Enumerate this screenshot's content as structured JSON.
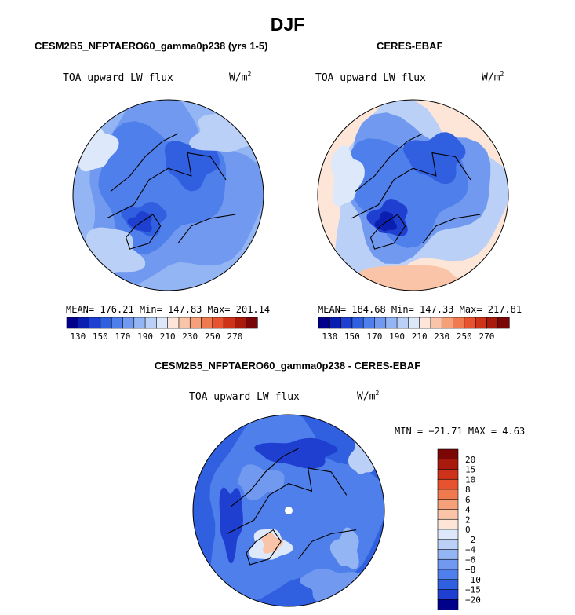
{
  "figure": {
    "season_title": "DJF",
    "panel_left_title": "CESM2B5_NFPTAERO60_gamma0p238 (yrs 1-5)",
    "panel_right_title": "CERES-EBAF",
    "panel_diff_title": "CESM2B5_NFPTAERO60_gamma0p238 - CERES-EBAF"
  },
  "panels": {
    "left": {
      "variable": "TOA upward LW flux",
      "units_base": "W/m",
      "units_exp": "2",
      "stats": "MEAN= 176.21  Min= 147.83  Max= 201.14"
    },
    "right": {
      "variable": "TOA upward LW flux",
      "units_base": "W/m",
      "units_exp": "2",
      "stats": "MEAN= 184.68  Min= 147.33  Max= 217.81"
    },
    "diff": {
      "variable": "TOA upward LW flux",
      "units_base": "W/m",
      "units_exp": "2",
      "stats": "MIN = −21.71 MAX =   4.63"
    }
  },
  "chart_data": [
    {
      "type": "heatmap",
      "projection": "north-polar-stereographic",
      "title": "CESM2B5_NFPTAERO60_gamma0p238 (yrs 1-5)",
      "variable": "TOA upward LW flux",
      "units": "W/m^2",
      "mean": 176.21,
      "min": 147.83,
      "max": 201.14,
      "colorbar": {
        "orientation": "horizontal",
        "tick_labels": [
          "130",
          "150",
          "170",
          "190",
          "210",
          "230",
          "250",
          "270"
        ],
        "colors": [
          "#00008b",
          "#0a1fb0",
          "#1f3fd0",
          "#3060e0",
          "#4f7fea",
          "#7099ef",
          "#94b5f3",
          "#bad0f7",
          "#dde8fb",
          "#fde6d8",
          "#f9c4a8",
          "#f6a07a",
          "#f07a50",
          "#e6532e",
          "#cc3318",
          "#a81a0c",
          "#7a0606"
        ]
      },
      "field_regions": [
        {
          "name": "greenland",
          "level": "low"
        },
        {
          "name": "central-arctic",
          "level": "mid"
        },
        {
          "name": "north-pacific-atlantic",
          "level": "upper-mid"
        }
      ]
    },
    {
      "type": "heatmap",
      "projection": "north-polar-stereographic",
      "title": "CERES-EBAF",
      "variable": "TOA upward LW flux",
      "units": "W/m^2",
      "mean": 184.68,
      "min": 147.33,
      "max": 217.81,
      "colorbar": {
        "orientation": "horizontal",
        "tick_labels": [
          "130",
          "150",
          "170",
          "190",
          "210",
          "230",
          "250",
          "270"
        ],
        "colors": [
          "#00008b",
          "#0a1fb0",
          "#1f3fd0",
          "#3060e0",
          "#4f7fea",
          "#7099ef",
          "#94b5f3",
          "#bad0f7",
          "#dde8fb",
          "#fde6d8",
          "#f9c4a8",
          "#f6a07a",
          "#f07a50",
          "#e6532e",
          "#cc3318",
          "#a81a0c",
          "#7a0606"
        ]
      },
      "field_regions": [
        {
          "name": "greenland",
          "level": "low"
        },
        {
          "name": "central-arctic",
          "level": "mid"
        },
        {
          "name": "subpolar-oceans",
          "level": "high"
        }
      ]
    },
    {
      "type": "heatmap",
      "projection": "north-polar-stereographic",
      "title": "CESM2B5_NFPTAERO60_gamma0p238 - CERES-EBAF",
      "variable": "TOA upward LW flux",
      "units": "W/m^2",
      "min": -21.71,
      "max": 4.63,
      "colorbar": {
        "orientation": "vertical",
        "tick_labels": [
          "20",
          "15",
          "10",
          "8",
          "6",
          "4",
          "2",
          "0",
          "−2",
          "−4",
          "−6",
          "−8",
          "−10",
          "−15",
          "−20"
        ],
        "colors": [
          "#7a0606",
          "#a81a0c",
          "#cc3318",
          "#e6532e",
          "#f07a50",
          "#f6a07a",
          "#f9c4a8",
          "#fde6d8",
          "#dde8fb",
          "#bad0f7",
          "#94b5f3",
          "#7099ef",
          "#4f7fea",
          "#3060e0",
          "#1f3fd0",
          "#00008b"
        ]
      },
      "field_regions": [
        {
          "name": "greenland-interior",
          "level": "positive"
        },
        {
          "name": "arctic-basin",
          "level": "negative"
        }
      ]
    }
  ]
}
